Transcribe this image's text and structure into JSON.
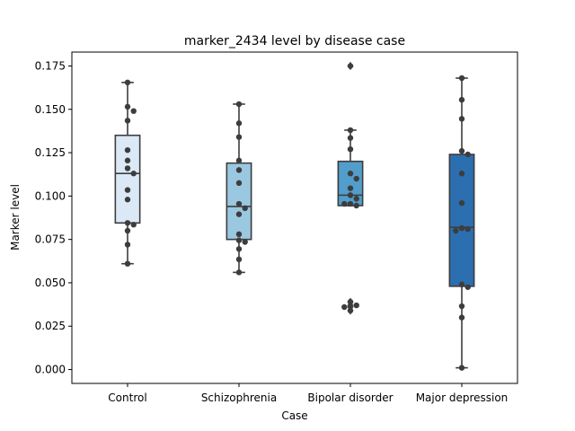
{
  "chart_data": {
    "type": "box",
    "title": "marker_2434 level by disease case",
    "xlabel": "Case",
    "ylabel": "Marker level",
    "ylim": [
      -0.008,
      0.183
    ],
    "yticks": [
      0.0,
      0.025,
      0.05,
      0.075,
      0.1,
      0.125,
      0.15,
      0.175
    ],
    "ytick_labels": [
      "0.000",
      "0.025",
      "0.050",
      "0.075",
      "0.100",
      "0.125",
      "0.150",
      "0.175"
    ],
    "categories": [
      "Control",
      "Schizophrenia",
      "Bipolar disorder",
      "Major depression"
    ],
    "colors": [
      "#dbe9f6",
      "#9ac8e0",
      "#529dcc",
      "#2b6fb0"
    ],
    "boxes": [
      {
        "q1": 0.0845,
        "median": 0.113,
        "q3": 0.135,
        "whisker_low": 0.061,
        "whisker_high": 0.1655,
        "outliers": []
      },
      {
        "q1": 0.075,
        "median": 0.094,
        "q3": 0.119,
        "whisker_low": 0.056,
        "whisker_high": 0.153,
        "outliers": []
      },
      {
        "q1": 0.0945,
        "median": 0.1005,
        "q3": 0.12,
        "whisker_low": 0.0945,
        "whisker_high": 0.138,
        "outliers": [
          0.175,
          0.039,
          0.037,
          0.036,
          0.034
        ]
      },
      {
        "q1": 0.048,
        "median": 0.082,
        "q3": 0.124,
        "whisker_low": 0.001,
        "whisker_high": 0.168,
        "outliers": []
      }
    ],
    "points": [
      [
        0.1655,
        0.1515,
        0.149,
        0.1435,
        0.1265,
        0.1205,
        0.116,
        0.113,
        0.1035,
        0.098,
        0.0845,
        0.0835,
        0.08,
        0.072,
        0.061
      ],
      [
        0.153,
        0.142,
        0.134,
        0.1205,
        0.115,
        0.1075,
        0.0955,
        0.093,
        0.0895,
        0.078,
        0.0745,
        0.0735,
        0.0695,
        0.0635,
        0.056
      ],
      [
        0.175,
        0.138,
        0.1335,
        0.127,
        0.113,
        0.11,
        0.1045,
        0.1005,
        0.0985,
        0.0955,
        0.0955,
        0.0945,
        0.039,
        0.037,
        0.036,
        0.034
      ],
      [
        0.168,
        0.1555,
        0.1445,
        0.126,
        0.124,
        0.113,
        0.096,
        0.0815,
        0.081,
        0.08,
        0.049,
        0.0475,
        0.0365,
        0.03,
        0.001
      ]
    ]
  }
}
